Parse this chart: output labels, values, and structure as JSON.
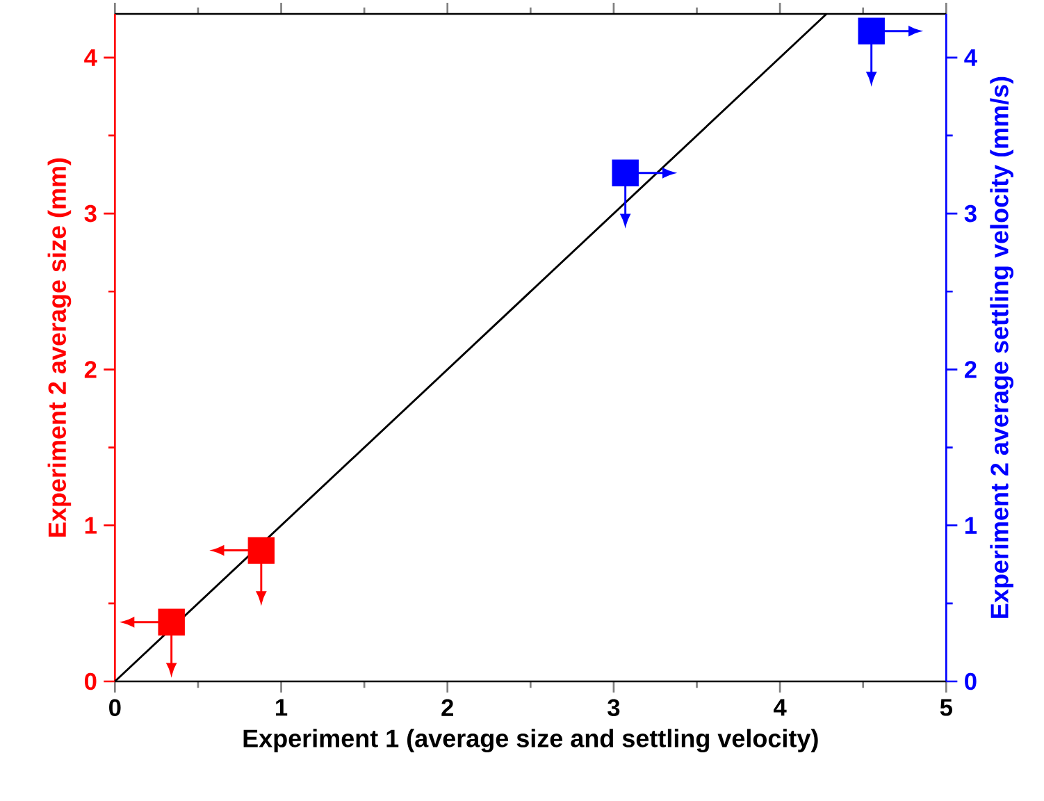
{
  "chart_data": {
    "type": "scatter",
    "xlabel": "Experiment 1 (average size and settling velocity)",
    "ylabel": "Experiment 2 average size (mm)",
    "y2label": "Experiment 2 average settling velocity (mm/s)",
    "xlim": [
      0,
      5
    ],
    "xticks": [
      0,
      1,
      2,
      3,
      4,
      5
    ],
    "ylim": [
      0,
      4.28
    ],
    "yticks": [
      0,
      1,
      2,
      3,
      4
    ],
    "y2lim": [
      0,
      4.28
    ],
    "y2ticks": [
      0,
      1,
      2,
      3,
      4
    ],
    "marker": "square",
    "series": [
      {
        "color": "#ff0000",
        "x": [
          0.34,
          0.88
        ],
        "values": [
          0.38,
          0.84
        ]
      },
      {
        "color": "#0000ff",
        "axis": "y2",
        "x": [
          3.07,
          4.55
        ],
        "values": [
          3.26,
          4.17
        ]
      },
      {
        "type": "line",
        "color": "#000000",
        "x": [
          0,
          4.28
        ],
        "values": [
          0,
          4.28
        ],
        "marker": "none"
      }
    ]
  }
}
